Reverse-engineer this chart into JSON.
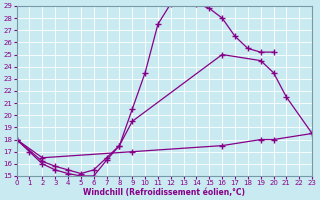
{
  "title": "",
  "xlabel": "Windchill (Refroidissement éolien,°C)",
  "ylabel": "",
  "xlim": [
    0,
    23
  ],
  "ylim": [
    15,
    29
  ],
  "xticks": [
    0,
    1,
    2,
    3,
    4,
    5,
    6,
    7,
    8,
    9,
    10,
    11,
    12,
    13,
    14,
    15,
    16,
    17,
    18,
    19,
    20,
    21,
    22,
    23
  ],
  "yticks": [
    15,
    16,
    17,
    18,
    19,
    20,
    21,
    22,
    23,
    24,
    25,
    26,
    27,
    28,
    29
  ],
  "bg_color": "#c8eaf0",
  "line_color": "#880088",
  "grid_color": "#aaccdd",
  "lines_data": [
    {
      "name": "line1_peak",
      "x": [
        0,
        1,
        2,
        3,
        4,
        5,
        6,
        7,
        8,
        9,
        10,
        11,
        12,
        13,
        14,
        15,
        16,
        17,
        18,
        19,
        20
      ],
      "y": [
        18.0,
        17.0,
        16.0,
        15.5,
        15.2,
        15.0,
        15.0,
        16.3,
        17.5,
        20.5,
        23.5,
        27.5,
        29.2,
        29.5,
        29.2,
        28.8,
        28.0,
        26.5,
        25.5,
        25.2,
        25.2
      ]
    },
    {
      "name": "line2_upper",
      "x": [
        0,
        2,
        3,
        4,
        5,
        6,
        7,
        8,
        9,
        16,
        19,
        20,
        21,
        23
      ],
      "y": [
        18.0,
        16.2,
        15.8,
        15.5,
        15.2,
        15.5,
        16.5,
        17.5,
        19.5,
        25.0,
        24.5,
        23.5,
        21.5,
        18.5
      ]
    },
    {
      "name": "line3_lower",
      "x": [
        0,
        2,
        9,
        16,
        19,
        20,
        23
      ],
      "y": [
        18.0,
        16.5,
        17.0,
        17.5,
        18.0,
        18.0,
        18.5
      ]
    }
  ]
}
